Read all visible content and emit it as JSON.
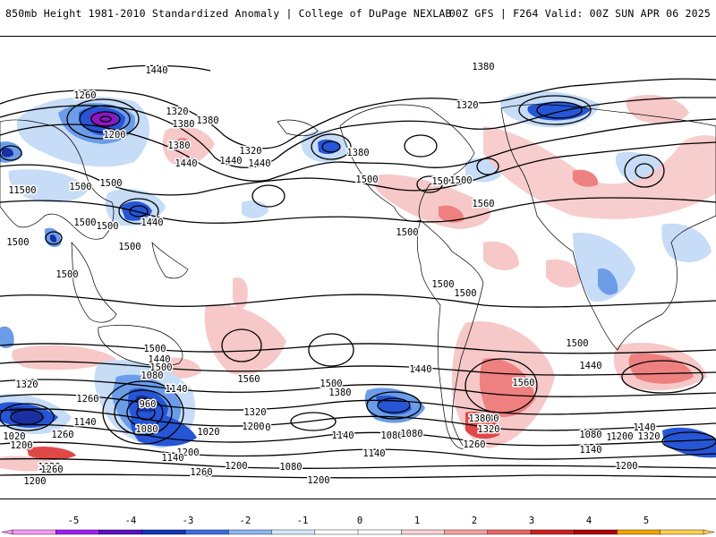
{
  "header": {
    "left_text": "850mb Height 1981-2010 Standardized Anomaly | College of DuPage NEXLAB",
    "right_text": "00Z GFS | F264 Valid: 00Z SUN APR 06 2025"
  },
  "map": {
    "contour_labels": [
      "1440",
      "1380",
      "1260",
      "1320",
      "1380",
      "1200",
      "1380",
      "1320",
      "1440",
      "1440",
      "1320",
      "1380",
      "1500",
      "1500",
      "1500",
      "1440",
      "1500",
      "1500",
      "1500",
      "1500",
      "1380",
      "1440",
      "1500",
      "1560",
      "1500",
      "1500",
      "1500",
      "1500",
      "1500",
      "1500",
      "1500",
      "1500",
      "1380",
      "1320",
      "1260",
      "1200",
      "1440",
      "1380",
      "1500",
      "1560",
      "1500",
      "1440",
      "1560",
      "1500",
      "1440",
      "1320",
      "1260",
      "1200",
      "1080",
      "1140",
      "960",
      "1020",
      "1080",
      "1260",
      "1140",
      "1020",
      "1200",
      "1140",
      "1080",
      "1200",
      "1140",
      "1080",
      "1200",
      "1140",
      "1260",
      "1200",
      "1320",
      "1380",
      "1260",
      "1320",
      "1140",
      "1200",
      "1080",
      "1200",
      "1140",
      "1020",
      "1200",
      "1260",
      "1080"
    ],
    "colors": {
      "contour": "#000000",
      "border": "#000000",
      "neg1": "#c6dcf7",
      "neg2": "#6c9ce8",
      "neg3": "#2655d6",
      "neg4": "#1a2fa0",
      "neg5": "#8a18c0",
      "pos1": "#f7c8c8",
      "pos2": "#ee8080",
      "pos3": "#e04848",
      "pos4": "#c81414",
      "pos5": "#f8a000"
    }
  },
  "colorbar": {
    "ticks": [
      "-5",
      "-4",
      "-3",
      "-2",
      "-1",
      "0",
      "1",
      "2",
      "3",
      "4",
      "5"
    ],
    "segments": [
      "#f49af4",
      "#a020f0",
      "#5a10c0",
      "#1535b8",
      "#3a6ce0",
      "#8cb4f0",
      "#d8e8fb",
      "#ffffff",
      "#ffffff",
      "#f9d3d3",
      "#f2a0a0",
      "#e86464",
      "#cc2020",
      "#b00000",
      "#f5a300",
      "#ffd050"
    ]
  }
}
